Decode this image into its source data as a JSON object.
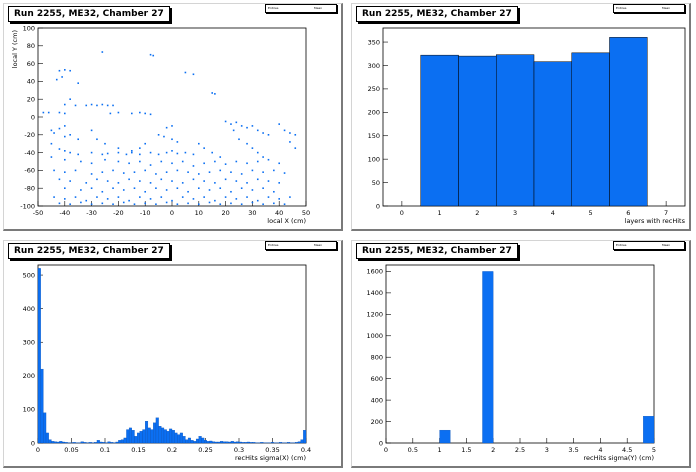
{
  "colors": {
    "fill": "#0b6ff2",
    "stroke": "#0b4fb0",
    "axis": "#000000"
  },
  "chart_data": [
    {
      "type": "scatter",
      "title": "Run 2255, ME32, Chamber 27",
      "xlabel": "local X (cm)",
      "ylabel": "local Y (cm)",
      "xlim": [
        -50,
        50
      ],
      "ylim": [
        -100,
        100
      ],
      "xticks": [
        -50,
        -40,
        -30,
        -20,
        -10,
        0,
        10,
        20,
        30,
        40,
        50
      ],
      "yticks": [
        -100,
        -80,
        -60,
        -40,
        -20,
        0,
        20,
        40,
        60,
        80,
        100
      ],
      "stats": [
        "Entries",
        "Mean"
      ],
      "points": [
        [
          -26,
          73
        ],
        [
          -8,
          70
        ],
        [
          -7,
          69
        ],
        [
          5,
          50
        ],
        [
          8,
          48
        ],
        [
          -42,
          52
        ],
        [
          -40,
          53
        ],
        [
          -38,
          52
        ],
        [
          -43,
          42
        ],
        [
          -41,
          45
        ],
        [
          -35,
          38
        ],
        [
          -38,
          20
        ],
        [
          -32,
          13
        ],
        [
          -30,
          14
        ],
        [
          -28,
          13
        ],
        [
          -26,
          14
        ],
        [
          -24,
          13
        ],
        [
          -22,
          13
        ],
        [
          -36,
          13
        ],
        [
          -40,
          14
        ],
        [
          -42,
          5
        ],
        [
          -46,
          5
        ],
        [
          -48,
          5
        ],
        [
          -40,
          4
        ],
        [
          -23,
          4
        ],
        [
          -20,
          5
        ],
        [
          -15,
          4
        ],
        [
          -12,
          5
        ],
        [
          -10,
          4
        ],
        [
          -8,
          3
        ],
        [
          15,
          27
        ],
        [
          16,
          26
        ],
        [
          -40,
          -10
        ],
        [
          -42,
          -13
        ],
        [
          -45,
          -15
        ],
        [
          -44,
          -18
        ],
        [
          -38,
          -20
        ],
        [
          -40,
          -22
        ],
        [
          -35,
          -25
        ],
        [
          -45,
          -30
        ],
        [
          -42,
          -36
        ],
        [
          -40,
          -38
        ],
        [
          -38,
          -40
        ],
        [
          -35,
          -42
        ],
        [
          -30,
          -40
        ],
        [
          -26,
          -42
        ],
        [
          -24,
          -41
        ],
        [
          -20,
          -40
        ],
        [
          -17,
          -42
        ],
        [
          -15,
          -40
        ],
        [
          -12,
          -42
        ],
        [
          -8,
          -40
        ],
        [
          -5,
          -42
        ],
        [
          -2,
          -40
        ],
        [
          0,
          -38
        ],
        [
          2,
          -41
        ],
        [
          5,
          -40
        ],
        [
          8,
          -42
        ],
        [
          -45,
          -45
        ],
        [
          -40,
          -48
        ],
        [
          -34,
          -50
        ],
        [
          -30,
          -52
        ],
        [
          -25,
          -48
        ],
        [
          -20,
          -50
        ],
        [
          -16,
          -52
        ],
        [
          -12,
          -50
        ],
        [
          -8,
          -54
        ],
        [
          -4,
          -50
        ],
        [
          0,
          -52
        ],
        [
          4,
          -50
        ],
        [
          8,
          -55
        ],
        [
          12,
          -52
        ],
        [
          16,
          -50
        ],
        [
          20,
          -53
        ],
        [
          24,
          -50
        ],
        [
          28,
          -52
        ],
        [
          32,
          -50
        ],
        [
          36,
          -48
        ],
        [
          40,
          -52
        ],
        [
          -44,
          -60
        ],
        [
          -40,
          -62
        ],
        [
          -36,
          -60
        ],
        [
          -30,
          -64
        ],
        [
          -26,
          -62
        ],
        [
          -22,
          -60
        ],
        [
          -18,
          -63
        ],
        [
          -14,
          -62
        ],
        [
          -10,
          -60
        ],
        [
          -6,
          -64
        ],
        [
          -2,
          -62
        ],
        [
          2,
          -60
        ],
        [
          6,
          -62
        ],
        [
          10,
          -64
        ],
        [
          14,
          -62
        ],
        [
          18,
          -60
        ],
        [
          22,
          -62
        ],
        [
          26,
          -64
        ],
        [
          30,
          -60
        ],
        [
          34,
          -62
        ],
        [
          38,
          -60
        ],
        [
          42,
          -63
        ],
        [
          -42,
          -70
        ],
        [
          -38,
          -72
        ],
        [
          -32,
          -74
        ],
        [
          -28,
          -70
        ],
        [
          -24,
          -72
        ],
        [
          -20,
          -74
        ],
        [
          -16,
          -70
        ],
        [
          -12,
          -72
        ],
        [
          -8,
          -74
        ],
        [
          -4,
          -70
        ],
        [
          0,
          -72
        ],
        [
          4,
          -74
        ],
        [
          8,
          -70
        ],
        [
          12,
          -72
        ],
        [
          16,
          -74
        ],
        [
          20,
          -70
        ],
        [
          24,
          -72
        ],
        [
          28,
          -74
        ],
        [
          32,
          -70
        ],
        [
          36,
          -72
        ],
        [
          40,
          -74
        ],
        [
          -40,
          -80
        ],
        [
          -34,
          -82
        ],
        [
          -30,
          -80
        ],
        [
          -26,
          -84
        ],
        [
          -22,
          -80
        ],
        [
          -18,
          -82
        ],
        [
          -14,
          -80
        ],
        [
          -10,
          -84
        ],
        [
          -6,
          -80
        ],
        [
          -2,
          -82
        ],
        [
          2,
          -80
        ],
        [
          6,
          -84
        ],
        [
          10,
          -80
        ],
        [
          14,
          -82
        ],
        [
          18,
          -80
        ],
        [
          22,
          -84
        ],
        [
          26,
          -80
        ],
        [
          30,
          -82
        ],
        [
          34,
          -80
        ],
        [
          38,
          -84
        ],
        [
          -44,
          -90
        ],
        [
          -40,
          -92
        ],
        [
          -36,
          -90
        ],
        [
          -32,
          -94
        ],
        [
          -28,
          -90
        ],
        [
          -24,
          -92
        ],
        [
          -20,
          -90
        ],
        [
          -16,
          -94
        ],
        [
          -12,
          -90
        ],
        [
          -8,
          -92
        ],
        [
          -4,
          -90
        ],
        [
          0,
          -94
        ],
        [
          4,
          -90
        ],
        [
          8,
          -92
        ],
        [
          12,
          -90
        ],
        [
          16,
          -94
        ],
        [
          20,
          -90
        ],
        [
          24,
          -92
        ],
        [
          28,
          -90
        ],
        [
          32,
          -94
        ],
        [
          36,
          -90
        ],
        [
          40,
          -92
        ],
        [
          44,
          -90
        ],
        [
          -42,
          -97
        ],
        [
          -38,
          -98
        ],
        [
          -34,
          -96
        ],
        [
          -30,
          -98
        ],
        [
          -26,
          -97
        ],
        [
          -22,
          -98
        ],
        [
          -18,
          -96
        ],
        [
          -14,
          -98
        ],
        [
          -10,
          -97
        ],
        [
          -6,
          -98
        ],
        [
          -2,
          -96
        ],
        [
          2,
          -98
        ],
        [
          6,
          -97
        ],
        [
          10,
          -98
        ],
        [
          14,
          -96
        ],
        [
          18,
          -98
        ],
        [
          22,
          -97
        ],
        [
          26,
          -98
        ],
        [
          30,
          -96
        ],
        [
          34,
          -98
        ],
        [
          38,
          -97
        ],
        [
          42,
          -98
        ],
        [
          -5,
          -20
        ],
        [
          -3,
          -22
        ],
        [
          0,
          -25
        ],
        [
          2,
          -28
        ],
        [
          20,
          -5
        ],
        [
          22,
          -8
        ],
        [
          24,
          -6
        ],
        [
          26,
          -10
        ],
        [
          28,
          -12
        ],
        [
          30,
          -10
        ],
        [
          32,
          -15
        ],
        [
          34,
          -18
        ],
        [
          36,
          -20
        ],
        [
          42,
          -15
        ],
        [
          44,
          -18
        ],
        [
          46,
          -20
        ],
        [
          40,
          -8
        ],
        [
          23,
          -15
        ],
        [
          25,
          -25
        ],
        [
          28,
          -30
        ],
        [
          30,
          -35
        ],
        [
          32,
          -40
        ],
        [
          34,
          -45
        ],
        [
          -30,
          -15
        ],
        [
          -28,
          -25
        ],
        [
          -25,
          -30
        ],
        [
          -20,
          -35
        ],
        [
          10,
          -30
        ],
        [
          12,
          -35
        ],
        [
          15,
          -40
        ],
        [
          18,
          -45
        ],
        [
          44,
          -28
        ],
        [
          46,
          -35
        ],
        [
          -10,
          -30
        ],
        [
          -12,
          -35
        ],
        [
          -15,
          -38
        ],
        [
          0,
          -10
        ],
        [
          -2,
          -12
        ]
      ]
    },
    {
      "type": "bar",
      "title": "Run 2255, ME32, Chamber 27",
      "xlabel": "layers with recHits",
      "ylabel": "",
      "categories": [
        "1",
        "2",
        "3",
        "4",
        "5",
        "6"
      ],
      "values": [
        322,
        320,
        323,
        308,
        327,
        360
      ],
      "xlim": [
        -0.5,
        7.5
      ],
      "ylim": [
        0,
        380
      ],
      "xticks": [
        0,
        1,
        2,
        3,
        4,
        5,
        6,
        7
      ],
      "yticks": [
        0,
        50,
        100,
        150,
        200,
        250,
        300,
        350
      ],
      "stats": [
        "Entries",
        "Mean"
      ]
    },
    {
      "type": "bar",
      "title": "Run 2255, ME32, Chamber 27",
      "xlabel": "recHits sigma(X) (cm)",
      "ylabel": "",
      "xlim": [
        0,
        0.4
      ],
      "ylim": [
        0,
        530
      ],
      "bin_width": 0.004,
      "xticks": [
        0,
        0.05,
        0.1,
        0.15,
        0.2,
        0.25,
        0.3,
        0.35,
        0.4
      ],
      "xtick_labels": [
        "0",
        "0.05",
        "0.1",
        "0.15",
        "0.2",
        "0.25",
        "0.3",
        "0.35",
        "0.4"
      ],
      "yticks": [
        0,
        100,
        200,
        300,
        400,
        500
      ],
      "values": [
        520,
        220,
        90,
        30,
        10,
        5,
        4,
        3,
        5,
        3,
        2,
        1,
        1,
        2,
        1,
        1,
        4,
        2,
        1,
        2,
        1,
        2,
        8,
        3,
        2,
        1,
        4,
        2,
        1,
        3,
        8,
        10,
        15,
        40,
        45,
        38,
        20,
        30,
        35,
        40,
        65,
        45,
        40,
        60,
        75,
        50,
        45,
        40,
        35,
        42,
        38,
        30,
        25,
        30,
        20,
        10,
        15,
        8,
        5,
        12,
        20,
        15,
        8,
        5,
        6,
        4,
        3,
        3,
        5,
        4,
        4,
        3,
        5,
        3,
        4,
        3,
        2,
        2,
        3,
        2,
        2,
        1,
        1,
        2,
        1,
        1,
        1,
        2,
        1,
        1,
        2,
        1,
        1,
        2,
        1,
        1,
        2,
        4,
        10,
        38
      ],
      "stats": [
        "Entries",
        "Mean"
      ]
    },
    {
      "type": "bar",
      "title": "Run 2255, ME32, Chamber 27",
      "xlabel": "recHits sigma(Y) (cm)",
      "ylabel": "",
      "xlim": [
        0,
        5
      ],
      "ylim": [
        0,
        1660
      ],
      "bin_width": 0.2,
      "xticks": [
        0,
        0.5,
        1,
        1.5,
        2,
        2.5,
        3,
        3.5,
        4,
        4.5,
        5
      ],
      "xtick_labels": [
        "0",
        "0.5",
        "1",
        "1.5",
        "2",
        "2.5",
        "3",
        "3.5",
        "4",
        "4.5",
        "5"
      ],
      "yticks": [
        0,
        200,
        400,
        600,
        800,
        1000,
        1200,
        1400,
        1600
      ],
      "values": [
        0,
        0,
        0,
        0,
        0,
        120,
        0,
        0,
        0,
        1600,
        0,
        0,
        0,
        0,
        0,
        0,
        0,
        0,
        0,
        0,
        0,
        0,
        0,
        0,
        250
      ],
      "stats": [
        "Entries",
        "Mean"
      ]
    }
  ]
}
